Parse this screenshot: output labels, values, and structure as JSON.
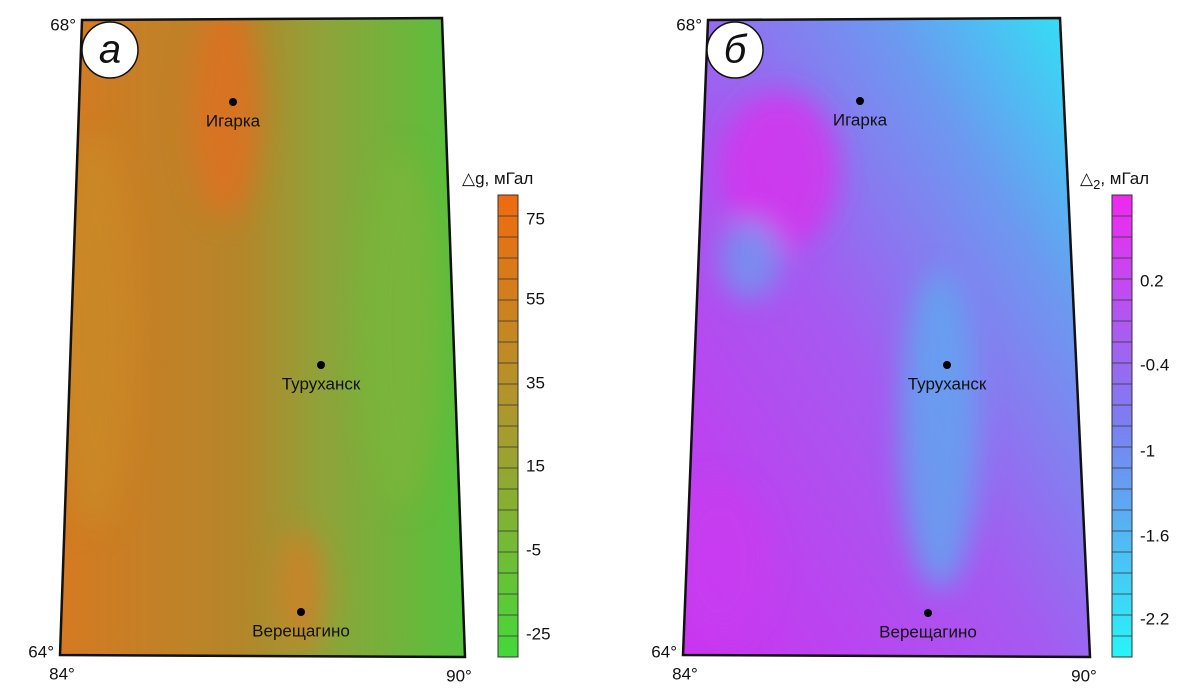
{
  "panels": [
    {
      "letter": "а",
      "lat_top": "68°",
      "lat_bottom": "64°",
      "lon_left": "84°",
      "lon_right": "90°",
      "cities": [
        "Игарка",
        "Туруханск",
        "Верещагино"
      ],
      "colorbar": {
        "title_symbol": "△g",
        "title_unit": ", мГал",
        "ticks": [
          "75",
          "55",
          "35",
          "15",
          "-5",
          "-25"
        ]
      }
    },
    {
      "letter": "б",
      "lat_top": "68°",
      "lat_bottom": "64°",
      "lon_left": "84°",
      "lon_right": "90°",
      "cities": [
        "Игарка",
        "Туруханск",
        "Верещагино"
      ],
      "colorbar": {
        "title_symbol": "△",
        "title_subscript": "2",
        "title_unit": ", мГал",
        "ticks": [
          "0.2",
          "-0.4",
          "-1",
          "-1.6",
          "-2.2"
        ]
      }
    }
  ]
}
